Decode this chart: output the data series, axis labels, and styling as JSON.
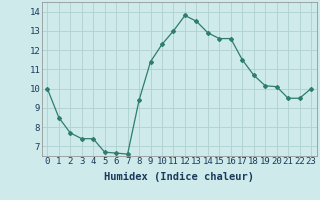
{
  "x": [
    0,
    1,
    2,
    3,
    4,
    5,
    6,
    7,
    8,
    9,
    10,
    11,
    12,
    13,
    14,
    15,
    16,
    17,
    18,
    19,
    20,
    21,
    22,
    23
  ],
  "y": [
    10.0,
    8.5,
    7.7,
    7.4,
    7.4,
    6.7,
    6.65,
    6.6,
    9.4,
    11.4,
    12.3,
    13.0,
    13.8,
    13.5,
    12.9,
    12.6,
    12.6,
    11.5,
    10.7,
    10.15,
    10.1,
    9.5,
    9.5,
    10.0
  ],
  "line_color": "#2e7d6e",
  "marker": "D",
  "marker_size": 2.0,
  "bg_color": "#ceeaea",
  "grid_color": "#b0cfcf",
  "xlabel": "Humidex (Indice chaleur)",
  "xlim": [
    -0.5,
    23.5
  ],
  "ylim": [
    6.5,
    14.5
  ],
  "yticks": [
    7,
    8,
    9,
    10,
    11,
    12,
    13,
    14
  ],
  "xticks": [
    0,
    1,
    2,
    3,
    4,
    5,
    6,
    7,
    8,
    9,
    10,
    11,
    12,
    13,
    14,
    15,
    16,
    17,
    18,
    19,
    20,
    21,
    22,
    23
  ],
  "tick_fontsize": 6.5,
  "xlabel_fontsize": 7.5
}
